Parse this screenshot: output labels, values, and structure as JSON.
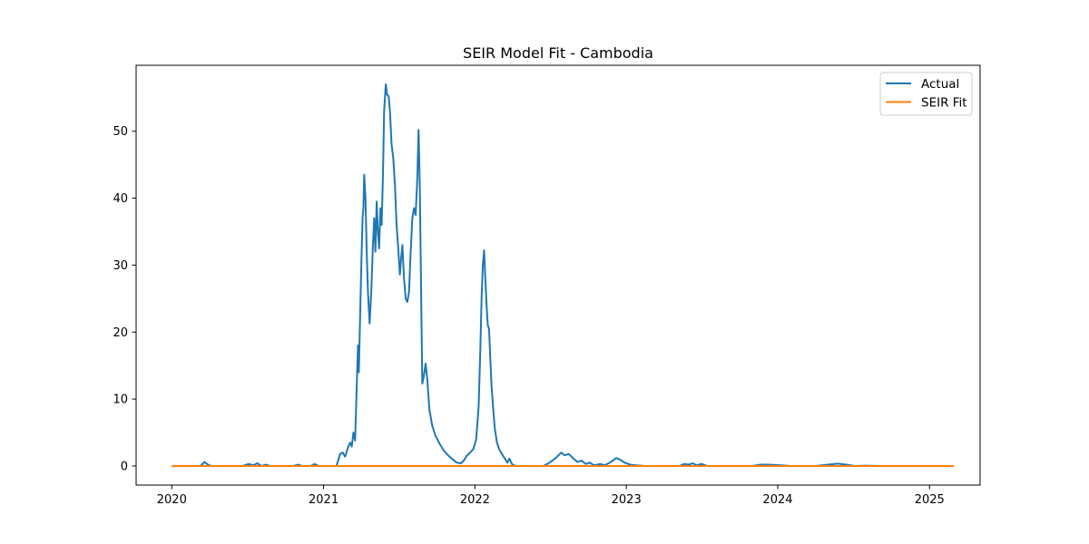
{
  "chart_data": {
    "type": "line",
    "title": "SEIR Model Fit - Cambodia",
    "xlabel": "",
    "ylabel": "",
    "x_axis": "date",
    "xlim": [
      "2019-10-07",
      "2025-05-03"
    ],
    "ylim": [
      -2.85,
      59.85
    ],
    "x_ticks": [
      {
        "date": "2020-01-01",
        "label": "2020"
      },
      {
        "date": "2021-01-01",
        "label": "2021"
      },
      {
        "date": "2022-01-01",
        "label": "2022"
      },
      {
        "date": "2023-01-01",
        "label": "2023"
      },
      {
        "date": "2024-01-01",
        "label": "2024"
      },
      {
        "date": "2025-01-01",
        "label": "2025"
      }
    ],
    "y_ticks": [
      0,
      10,
      20,
      30,
      40,
      50
    ],
    "grid": false,
    "legend_position": "top-right",
    "series": [
      {
        "name": "Actual",
        "color": "#1f77b4",
        "points": [
          [
            "2020-01-01",
            0
          ],
          [
            "2020-03-10",
            0
          ],
          [
            "2020-03-20",
            0.6
          ],
          [
            "2020-03-28",
            0.2
          ],
          [
            "2020-04-05",
            0
          ],
          [
            "2020-06-20",
            0
          ],
          [
            "2020-07-05",
            0.3
          ],
          [
            "2020-07-15",
            0.1
          ],
          [
            "2020-07-25",
            0.4
          ],
          [
            "2020-08-05",
            0
          ],
          [
            "2020-08-15",
            0.2
          ],
          [
            "2020-08-25",
            0
          ],
          [
            "2020-10-20",
            0
          ],
          [
            "2020-11-01",
            0.2
          ],
          [
            "2020-11-10",
            0
          ],
          [
            "2020-12-01",
            0
          ],
          [
            "2020-12-10",
            0.3
          ],
          [
            "2020-12-20",
            0
          ],
          [
            "2021-02-01",
            0
          ],
          [
            "2021-02-10",
            1.8
          ],
          [
            "2021-02-16",
            2.0
          ],
          [
            "2021-02-22",
            1.4
          ],
          [
            "2021-03-01",
            2.8
          ],
          [
            "2021-03-06",
            3.5
          ],
          [
            "2021-03-10",
            2.9
          ],
          [
            "2021-03-14",
            5.0
          ],
          [
            "2021-03-18",
            3.8
          ],
          [
            "2021-03-22",
            12.0
          ],
          [
            "2021-03-25",
            18.0
          ],
          [
            "2021-03-27",
            14.0
          ],
          [
            "2021-03-30",
            22.0
          ],
          [
            "2021-04-02",
            30.0
          ],
          [
            "2021-04-05",
            37.0
          ],
          [
            "2021-04-07",
            38.5
          ],
          [
            "2021-04-09",
            43.5
          ],
          [
            "2021-04-12",
            40.0
          ],
          [
            "2021-04-15",
            32.0
          ],
          [
            "2021-04-18",
            26.0
          ],
          [
            "2021-04-22",
            21.3
          ],
          [
            "2021-04-26",
            26.0
          ],
          [
            "2021-04-30",
            33.0
          ],
          [
            "2021-05-03",
            37.0
          ],
          [
            "2021-05-06",
            32.0
          ],
          [
            "2021-05-09",
            39.5
          ],
          [
            "2021-05-12",
            35.0
          ],
          [
            "2021-05-15",
            32.5
          ],
          [
            "2021-05-18",
            38.5
          ],
          [
            "2021-05-21",
            36.0
          ],
          [
            "2021-05-24",
            43.0
          ],
          [
            "2021-05-27",
            53.0
          ],
          [
            "2021-05-31",
            57.0
          ],
          [
            "2021-06-03",
            55.5
          ],
          [
            "2021-06-07",
            55.2
          ],
          [
            "2021-06-10",
            53.0
          ],
          [
            "2021-06-14",
            48.0
          ],
          [
            "2021-06-18",
            46.0
          ],
          [
            "2021-06-22",
            42.0
          ],
          [
            "2021-06-26",
            36.0
          ],
          [
            "2021-06-30",
            32.5
          ],
          [
            "2021-07-04",
            28.6
          ],
          [
            "2021-07-07",
            31.0
          ],
          [
            "2021-07-10",
            33.0
          ],
          [
            "2021-07-14",
            28.0
          ],
          [
            "2021-07-18",
            25.0
          ],
          [
            "2021-07-22",
            24.5
          ],
          [
            "2021-07-26",
            26.0
          ],
          [
            "2021-07-30",
            32.0
          ],
          [
            "2021-08-03",
            37.0
          ],
          [
            "2021-08-07",
            38.5
          ],
          [
            "2021-08-11",
            37.5
          ],
          [
            "2021-08-15",
            43.0
          ],
          [
            "2021-08-18",
            50.2
          ],
          [
            "2021-08-21",
            42.0
          ],
          [
            "2021-08-24",
            27.0
          ],
          [
            "2021-08-27",
            12.3
          ],
          [
            "2021-08-31",
            13.5
          ],
          [
            "2021-09-04",
            15.3
          ],
          [
            "2021-09-08",
            13.0
          ],
          [
            "2021-09-13",
            8.5
          ],
          [
            "2021-09-20",
            6.0
          ],
          [
            "2021-09-28",
            4.5
          ],
          [
            "2021-10-08",
            3.3
          ],
          [
            "2021-10-18",
            2.3
          ],
          [
            "2021-10-28",
            1.6
          ],
          [
            "2021-11-08",
            1.0
          ],
          [
            "2021-11-18",
            0.5
          ],
          [
            "2021-11-28",
            0.4
          ],
          [
            "2021-12-05",
            0.8
          ],
          [
            "2021-12-12",
            1.5
          ],
          [
            "2021-12-20",
            2.0
          ],
          [
            "2021-12-28",
            2.5
          ],
          [
            "2022-01-04",
            4.0
          ],
          [
            "2022-01-10",
            9.0
          ],
          [
            "2022-01-14",
            17.5
          ],
          [
            "2022-01-17",
            25.0
          ],
          [
            "2022-01-20",
            30.0
          ],
          [
            "2022-01-23",
            32.2
          ],
          [
            "2022-01-26",
            28.0
          ],
          [
            "2022-01-29",
            24.0
          ],
          [
            "2022-02-01",
            21.0
          ],
          [
            "2022-02-04",
            20.5
          ],
          [
            "2022-02-07",
            16.0
          ],
          [
            "2022-02-10",
            12.0
          ],
          [
            "2022-02-14",
            8.5
          ],
          [
            "2022-02-18",
            5.5
          ],
          [
            "2022-02-23",
            3.5
          ],
          [
            "2022-03-01",
            2.4
          ],
          [
            "2022-03-08",
            1.7
          ],
          [
            "2022-03-15",
            1.0
          ],
          [
            "2022-03-20",
            0.5
          ],
          [
            "2022-03-25",
            1.1
          ],
          [
            "2022-04-01",
            0.2
          ],
          [
            "2022-04-10",
            0
          ],
          [
            "2022-06-15",
            0
          ],
          [
            "2022-06-30",
            0.5
          ],
          [
            "2022-07-15",
            1.2
          ],
          [
            "2022-07-28",
            2.0
          ],
          [
            "2022-08-05",
            1.6
          ],
          [
            "2022-08-15",
            1.8
          ],
          [
            "2022-08-25",
            1.2
          ],
          [
            "2022-09-05",
            0.6
          ],
          [
            "2022-09-15",
            0.8
          ],
          [
            "2022-09-25",
            0.3
          ],
          [
            "2022-10-05",
            0.5
          ],
          [
            "2022-10-15",
            0.1
          ],
          [
            "2022-10-30",
            0.3
          ],
          [
            "2022-11-10",
            0.1
          ],
          [
            "2022-11-25",
            0.6
          ],
          [
            "2022-12-08",
            1.2
          ],
          [
            "2022-12-18",
            0.9
          ],
          [
            "2022-12-28",
            0.5
          ],
          [
            "2023-01-10",
            0.2
          ],
          [
            "2023-01-25",
            0.1
          ],
          [
            "2023-02-15",
            0
          ],
          [
            "2023-05-10",
            0
          ],
          [
            "2023-05-20",
            0.3
          ],
          [
            "2023-06-01",
            0.2
          ],
          [
            "2023-06-10",
            0.4
          ],
          [
            "2023-06-20",
            0.1
          ],
          [
            "2023-07-01",
            0.3
          ],
          [
            "2023-07-15",
            0
          ],
          [
            "2023-11-01",
            0
          ],
          [
            "2023-11-20",
            0.2
          ],
          [
            "2023-12-10",
            0.2
          ],
          [
            "2024-01-10",
            0.1
          ],
          [
            "2024-02-01",
            0
          ],
          [
            "2024-04-01",
            0
          ],
          [
            "2024-05-01",
            0.2
          ],
          [
            "2024-05-25",
            0.35
          ],
          [
            "2024-06-15",
            0.2
          ],
          [
            "2024-07-05",
            0
          ],
          [
            "2024-08-01",
            0.05
          ],
          [
            "2024-09-01",
            0
          ],
          [
            "2024-09-10",
            0
          ]
        ]
      },
      {
        "name": "SEIR Fit",
        "color": "#ff7f0e",
        "points": [
          [
            "2020-01-01",
            0
          ],
          [
            "2025-03-01",
            0
          ]
        ]
      }
    ]
  }
}
